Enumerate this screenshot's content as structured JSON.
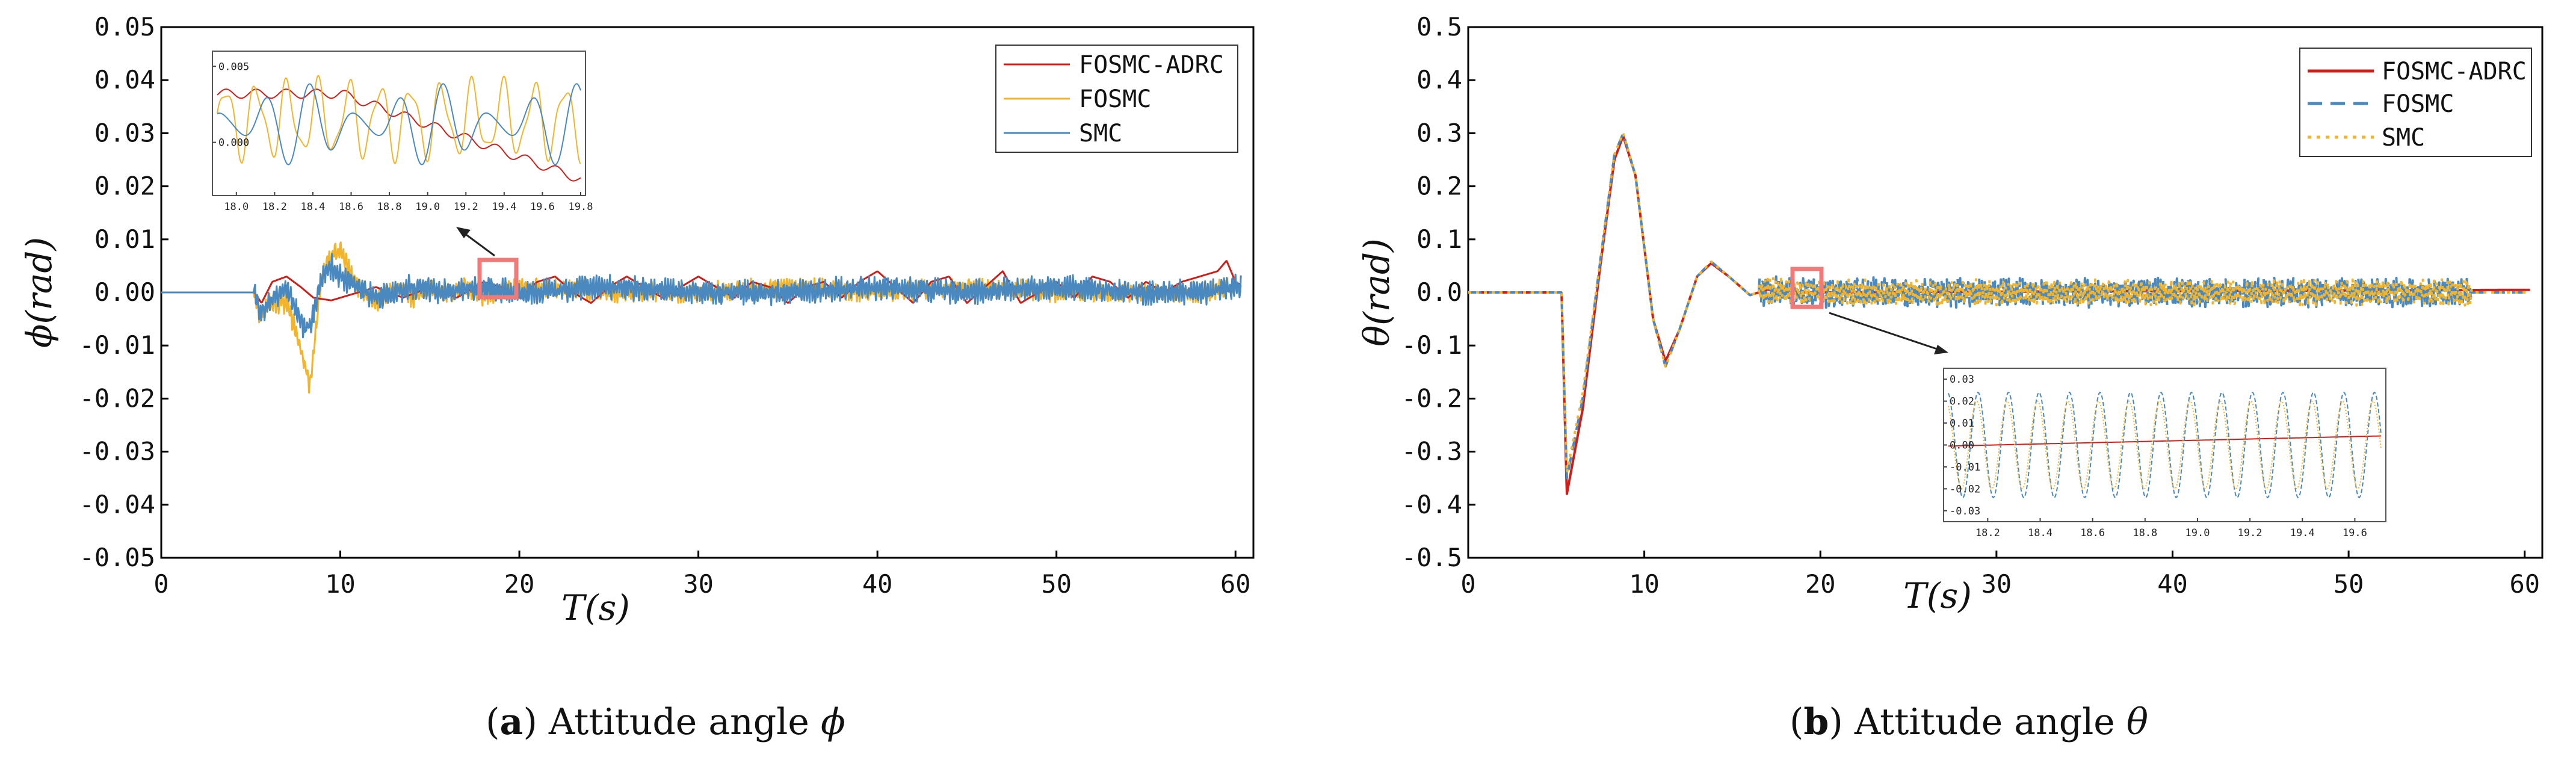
{
  "colors": {
    "fosmc_adrc": "#cc1f1a",
    "fosmc": "#f2b42b",
    "smc": "#4a89bf",
    "zoom_box": "#f07a78"
  },
  "chart_data": [
    {
      "type": "line",
      "panel": "a",
      "caption": {
        "label": "a",
        "open": "(",
        "close": ")",
        "text": " Attitude angle ",
        "symbol": "ϕ"
      },
      "xlabel": "T(s)",
      "ylabel": "ϕ(rad)",
      "xlim": [
        0,
        61
      ],
      "ylim": [
        -0.05,
        0.05
      ],
      "xticks": [
        "0",
        "10",
        "20",
        "30",
        "40",
        "50",
        "60"
      ],
      "yticks": [
        "0.05",
        "0.04",
        "0.03",
        "0.02",
        "0.01",
        "0.00",
        "-0.01",
        "-0.02",
        "-0.03",
        "-0.04",
        "-0.05"
      ],
      "legend_position": "top-right",
      "series": [
        {
          "name": "FOSMC-ADRC",
          "color": "#cc1f1a",
          "style": "solid",
          "points": [
            [
              0,
              0
            ],
            [
              5.2,
              0
            ],
            [
              5.6,
              -0.002
            ],
            [
              6.2,
              0.002
            ],
            [
              7,
              0.003
            ],
            [
              7.8,
              0.001
            ],
            [
              8.5,
              -0.001
            ],
            [
              9.5,
              -0.0015
            ],
            [
              11,
              0
            ],
            [
              12,
              0.001
            ],
            [
              13.5,
              -0.001
            ],
            [
              15,
              0.001
            ],
            [
              16.5,
              -0.001
            ],
            [
              18,
              0.002
            ],
            [
              19,
              0.001
            ],
            [
              20,
              -0.001
            ],
            [
              21,
              0.002
            ],
            [
              22,
              0.003
            ],
            [
              23,
              0
            ],
            [
              24,
              -0.002
            ],
            [
              25,
              0.001
            ],
            [
              26,
              0.003
            ],
            [
              27,
              0.001
            ],
            [
              28,
              -0.001
            ],
            [
              29,
              0.001
            ],
            [
              30,
              0.003
            ],
            [
              31,
              0.001
            ],
            [
              32,
              -0.001
            ],
            [
              33,
              0.002
            ],
            [
              34,
              0.001
            ],
            [
              35,
              -0.002
            ],
            [
              36,
              0.001
            ],
            [
              37,
              0.002
            ],
            [
              38,
              -0.001
            ],
            [
              39,
              0.002
            ],
            [
              40,
              0.004
            ],
            [
              41,
              0.001
            ],
            [
              42,
              -0.002
            ],
            [
              43,
              0.002
            ],
            [
              44,
              0.003
            ],
            [
              45,
              -0.002
            ],
            [
              46,
              0.001
            ],
            [
              47,
              0.004
            ],
            [
              48,
              -0.002
            ],
            [
              49,
              0
            ],
            [
              50,
              0.002
            ],
            [
              51,
              -0.001
            ],
            [
              52,
              0.003
            ],
            [
              53,
              0.002
            ],
            [
              54,
              -0.001
            ],
            [
              55,
              0.002
            ],
            [
              56,
              0
            ],
            [
              57,
              0.002
            ],
            [
              58,
              0.003
            ],
            [
              59,
              0.004
            ],
            [
              59.5,
              0.006
            ],
            [
              60,
              0.002
            ],
            [
              61,
              0
            ]
          ]
        },
        {
          "name": "FOSMC",
          "color": "#f2b42b",
          "style": "solid",
          "points": [
            [
              0,
              0
            ],
            [
              5.2,
              0
            ],
            [
              5.5,
              -0.005
            ],
            [
              6,
              -0.002
            ],
            [
              7,
              -0.002
            ],
            [
              7.5,
              -0.007
            ],
            [
              8,
              -0.013
            ],
            [
              8.3,
              -0.018
            ],
            [
              8.6,
              -0.008
            ],
            [
              9,
              0.004
            ],
            [
              9.5,
              0.007
            ],
            [
              10,
              0.008
            ],
            [
              10.5,
              0.004
            ],
            [
              11,
              0.001
            ],
            [
              12,
              -0.002
            ],
            [
              13,
              0.001
            ],
            [
              14,
              -0.001
            ],
            [
              15,
              0.001
            ],
            [
              16,
              0
            ],
            [
              17,
              0.001
            ],
            [
              18,
              -0.001
            ],
            [
              20,
              0.001
            ],
            [
              22,
              0.001
            ],
            [
              25,
              0
            ],
            [
              30,
              0
            ],
            [
              35,
              0.001
            ],
            [
              40,
              0
            ],
            [
              45,
              0.001
            ],
            [
              50,
              0
            ],
            [
              55,
              0
            ],
            [
              58,
              0
            ],
            [
              60,
              0.001
            ],
            [
              61,
              0
            ]
          ],
          "noise_amp": 0.0018,
          "noise_start": 5.2
        },
        {
          "name": "SMC",
          "color": "#4a89bf",
          "style": "solid",
          "points": [
            [
              0,
              0
            ],
            [
              5.2,
              0
            ],
            [
              5.5,
              -0.004
            ],
            [
              6,
              -0.002
            ],
            [
              7,
              0.001
            ],
            [
              7.5,
              -0.003
            ],
            [
              8,
              -0.007
            ],
            [
              8.4,
              -0.005
            ],
            [
              9,
              0.003
            ],
            [
              9.5,
              0.005
            ],
            [
              10,
              0.003
            ],
            [
              11,
              0.001
            ],
            [
              12,
              -0.001
            ],
            [
              14,
              0.001
            ],
            [
              16,
              0
            ],
            [
              18,
              0.001
            ],
            [
              20,
              0
            ],
            [
              25,
              0.001
            ],
            [
              30,
              0
            ],
            [
              35,
              0
            ],
            [
              40,
              0.001
            ],
            [
              45,
              0
            ],
            [
              50,
              0.001
            ],
            [
              55,
              0
            ],
            [
              58,
              0
            ],
            [
              60,
              0.001
            ],
            [
              61,
              0
            ]
          ],
          "noise_amp": 0.0022,
          "noise_start": 5.2
        }
      ],
      "inset": {
        "xlim": [
          17.9,
          19.8
        ],
        "ylim": [
          -0.0035,
          0.006
        ],
        "xticks": [
          "18.0",
          "18.2",
          "18.4",
          "18.6",
          "18.8",
          "19.0",
          "19.2",
          "19.4",
          "19.6",
          "19.8"
        ],
        "yticks": [
          "0.005",
          "0.000"
        ],
        "zoom_range": [
          18.0,
          19.7
        ]
      }
    },
    {
      "type": "line",
      "panel": "b",
      "caption": {
        "label": "b",
        "open": "(",
        "close": ")",
        "text": " Attitude angle ",
        "symbol": "θ"
      },
      "xlabel": "T(s)",
      "ylabel": "θ(rad)",
      "xlim": [
        0,
        61
      ],
      "ylim": [
        -0.5,
        0.5
      ],
      "xticks": [
        "0",
        "10",
        "20",
        "30",
        "40",
        "50",
        "60"
      ],
      "yticks": [
        "0.5",
        "0.4",
        "0.3",
        "0.2",
        "0.1",
        "0.0",
        "-0.1",
        "-0.2",
        "-0.3",
        "-0.4",
        "-0.5"
      ],
      "legend_position": "top-right",
      "series": [
        {
          "name": "FOSMC-ADRC",
          "color": "#cc1f1a",
          "style": "solid",
          "points": [
            [
              0,
              0
            ],
            [
              5.3,
              0
            ],
            [
              5.6,
              -0.38
            ],
            [
              6.5,
              -0.22
            ],
            [
              7.5,
              0.05
            ],
            [
              8.3,
              0.25
            ],
            [
              8.8,
              0.295
            ],
            [
              9.5,
              0.22
            ],
            [
              10.5,
              -0.05
            ],
            [
              11.2,
              -0.13
            ],
            [
              12,
              -0.07
            ],
            [
              13,
              0.03
            ],
            [
              13.8,
              0.055
            ],
            [
              14.8,
              0.03
            ],
            [
              16,
              -0.005
            ],
            [
              17,
              0.005
            ],
            [
              18,
              0
            ],
            [
              61,
              0.005
            ]
          ]
        },
        {
          "name": "FOSMC",
          "color": "#4a89bf",
          "style": "dashed",
          "points": [
            [
              0,
              0
            ],
            [
              5.3,
              0
            ],
            [
              5.6,
              -0.35
            ],
            [
              6.5,
              -0.2
            ],
            [
              7.5,
              0.06
            ],
            [
              8.3,
              0.26
            ],
            [
              8.8,
              0.3
            ],
            [
              9.5,
              0.22
            ],
            [
              10.5,
              -0.05
            ],
            [
              11.2,
              -0.14
            ],
            [
              12,
              -0.07
            ],
            [
              13,
              0.03
            ],
            [
              13.8,
              0.058
            ],
            [
              14.8,
              0.03
            ],
            [
              16,
              -0.005
            ],
            [
              17,
              0.005
            ],
            [
              18,
              0
            ],
            [
              61,
              0
            ]
          ],
          "noise_amp": 0.025,
          "noise_start": 16.5,
          "noise_end": 57
        },
        {
          "name": "SMC",
          "color": "#f2b42b",
          "style": "dotted",
          "points": [
            [
              0,
              0
            ],
            [
              5.3,
              0
            ],
            [
              5.6,
              -0.34
            ],
            [
              6.5,
              -0.19
            ],
            [
              7.5,
              0.06
            ],
            [
              8.3,
              0.26
            ],
            [
              8.8,
              0.3
            ],
            [
              9.5,
              0.22
            ],
            [
              10.5,
              -0.05
            ],
            [
              11.2,
              -0.14
            ],
            [
              12,
              -0.07
            ],
            [
              13,
              0.03
            ],
            [
              13.8,
              0.058
            ],
            [
              14.8,
              0.03
            ],
            [
              16,
              -0.005
            ],
            [
              17,
              0.005
            ],
            [
              18,
              0
            ],
            [
              61,
              0
            ]
          ],
          "noise_amp": 0.022,
          "noise_start": 16.5,
          "noise_end": 57
        }
      ],
      "inset": {
        "xlim": [
          18.05,
          19.7
        ],
        "ylim": [
          -0.035,
          0.035
        ],
        "xticks": [
          "18.2",
          "18.4",
          "18.6",
          "18.8",
          "19.0",
          "19.2",
          "19.4",
          "19.6"
        ],
        "yticks": [
          "0.03",
          "0.02",
          "0.01",
          "0.00",
          "-0.01",
          "-0.02",
          "-0.03"
        ],
        "zoom_range": [
          18.0,
          19.7
        ]
      }
    }
  ]
}
